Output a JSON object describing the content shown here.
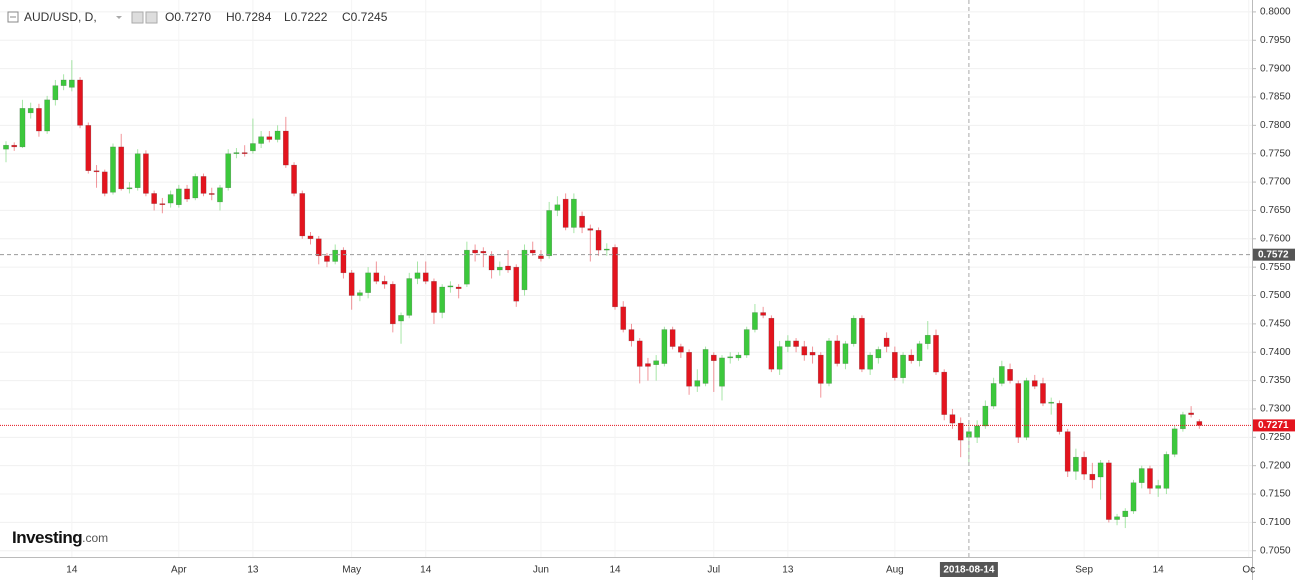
{
  "chart_data": {
    "type": "candlestick",
    "header": {
      "symbol": "AUD/USD, D,",
      "open": "O0.7270",
      "high": "H0.7284",
      "low": "L0.7222",
      "close": "C0.7245"
    },
    "logo": {
      "name": "Investing",
      "suffix": ".com"
    },
    "up_color": "#3cc83c",
    "down_color": "#e3141e",
    "ylim": [
      0.7039,
      0.8021
    ],
    "yticks": [
      {
        "value": 0.8,
        "label": "0.8000"
      },
      {
        "value": 0.795,
        "label": "0.7950"
      },
      {
        "value": 0.79,
        "label": "0.7900"
      },
      {
        "value": 0.785,
        "label": "0.7850"
      },
      {
        "value": 0.78,
        "label": "0.7800"
      },
      {
        "value": 0.775,
        "label": "0.7750"
      },
      {
        "value": 0.77,
        "label": "0.7700"
      },
      {
        "value": 0.765,
        "label": "0.7650"
      },
      {
        "value": 0.76,
        "label": "0.7600"
      },
      {
        "value": 0.755,
        "label": "0.7550"
      },
      {
        "value": 0.75,
        "label": "0.7500"
      },
      {
        "value": 0.745,
        "label": "0.7450"
      },
      {
        "value": 0.74,
        "label": "0.7400"
      },
      {
        "value": 0.735,
        "label": "0.7350"
      },
      {
        "value": 0.73,
        "label": "0.7300"
      },
      {
        "value": 0.725,
        "label": "0.7250"
      },
      {
        "value": 0.72,
        "label": "0.7200"
      },
      {
        "value": 0.715,
        "label": "0.7150"
      },
      {
        "value": 0.71,
        "label": "0.7100"
      },
      {
        "value": 0.705,
        "label": "0.7050"
      }
    ],
    "grid": true,
    "crosshair": {
      "date": "2018-08-14",
      "price": 0.7572
    },
    "last_price": 0.7271,
    "categories": [
      null,
      null,
      null,
      null,
      null,
      null,
      null,
      null,
      "14",
      null,
      null,
      null,
      null,
      null,
      null,
      null,
      null,
      null,
      null,
      null,
      null,
      "Apr",
      null,
      null,
      null,
      null,
      null,
      null,
      null,
      null,
      "13",
      null,
      null,
      null,
      null,
      null,
      null,
      null,
      null,
      null,
      null,
      null,
      "May",
      null,
      null,
      null,
      null,
      null,
      null,
      null,
      null,
      "14",
      null,
      null,
      null,
      null,
      null,
      null,
      null,
      null,
      null,
      null,
      null,
      null,
      null,
      "Jun",
      null,
      null,
      null,
      null,
      null,
      null,
      null,
      null,
      "14",
      null,
      null,
      null,
      null,
      null,
      null,
      null,
      null,
      null,
      null,
      null,
      "Jul",
      null,
      null,
      null,
      null,
      null,
      null,
      null,
      null,
      "13",
      null,
      null,
      null,
      null,
      null,
      null,
      null,
      null,
      null,
      null,
      null,
      null,
      "Aug",
      null,
      null,
      null,
      null,
      null,
      null,
      null,
      null,
      "2018-08-14",
      null,
      null,
      null,
      null,
      null,
      null,
      null,
      null,
      null,
      null,
      null,
      null,
      null,
      "Sep",
      null,
      null,
      null,
      null,
      null,
      null,
      null,
      null,
      "14",
      null,
      null,
      null,
      null,
      null,
      null,
      null,
      null,
      null,
      null,
      "Oc"
    ],
    "ohlc": [
      [
        0.7758,
        0.7772,
        0.7735,
        0.7765
      ],
      [
        0.7765,
        0.777,
        0.7755,
        0.7762
      ],
      [
        0.7762,
        0.7845,
        0.776,
        0.783
      ],
      [
        0.7822,
        0.784,
        0.7812,
        0.783
      ],
      [
        0.783,
        0.7838,
        0.778,
        0.779
      ],
      [
        0.779,
        0.7852,
        0.7785,
        0.7845
      ],
      [
        0.7845,
        0.788,
        0.7835,
        0.787
      ],
      [
        0.787,
        0.789,
        0.7862,
        0.788
      ],
      [
        0.7867,
        0.7915,
        0.786,
        0.788
      ],
      [
        0.788,
        0.7885,
        0.7795,
        0.78
      ],
      [
        0.78,
        0.7805,
        0.7715,
        0.772
      ],
      [
        0.772,
        0.773,
        0.769,
        0.7718
      ],
      [
        0.7718,
        0.7722,
        0.7675,
        0.768
      ],
      [
        0.7682,
        0.7768,
        0.7678,
        0.7762
      ],
      [
        0.7762,
        0.7785,
        0.7685,
        0.7688
      ],
      [
        0.7688,
        0.77,
        0.768,
        0.769
      ],
      [
        0.769,
        0.7758,
        0.7685,
        0.775
      ],
      [
        0.775,
        0.7756,
        0.7675,
        0.768
      ],
      [
        0.768,
        0.7685,
        0.765,
        0.7662
      ],
      [
        0.7662,
        0.7672,
        0.7645,
        0.766
      ],
      [
        0.7663,
        0.7685,
        0.7655,
        0.7678
      ],
      [
        0.766,
        0.7695,
        0.7655,
        0.7688
      ],
      [
        0.7688,
        0.7695,
        0.7665,
        0.767
      ],
      [
        0.7672,
        0.7715,
        0.7668,
        0.771
      ],
      [
        0.771,
        0.7715,
        0.7675,
        0.768
      ],
      [
        0.768,
        0.769,
        0.7668,
        0.7678
      ],
      [
        0.7665,
        0.7695,
        0.765,
        0.769
      ],
      [
        0.769,
        0.7758,
        0.7685,
        0.775
      ],
      [
        0.775,
        0.776,
        0.7742,
        0.7752
      ],
      [
        0.7752,
        0.7765,
        0.7745,
        0.775
      ],
      [
        0.7755,
        0.7812,
        0.775,
        0.7768
      ],
      [
        0.7768,
        0.779,
        0.776,
        0.778
      ],
      [
        0.778,
        0.779,
        0.777,
        0.7775
      ],
      [
        0.7775,
        0.78,
        0.777,
        0.779
      ],
      [
        0.779,
        0.7815,
        0.7725,
        0.773
      ],
      [
        0.773,
        0.7735,
        0.7675,
        0.768
      ],
      [
        0.768,
        0.7685,
        0.76,
        0.7605
      ],
      [
        0.7605,
        0.7612,
        0.759,
        0.76
      ],
      [
        0.76,
        0.7605,
        0.7555,
        0.757
      ],
      [
        0.757,
        0.7575,
        0.755,
        0.756
      ],
      [
        0.756,
        0.759,
        0.7555,
        0.758
      ],
      [
        0.758,
        0.7585,
        0.753,
        0.754
      ],
      [
        0.754,
        0.7545,
        0.7475,
        0.75
      ],
      [
        0.75,
        0.751,
        0.749,
        0.7505
      ],
      [
        0.7505,
        0.755,
        0.7495,
        0.754
      ],
      [
        0.754,
        0.756,
        0.752,
        0.7525
      ],
      [
        0.7525,
        0.7535,
        0.7512,
        0.752
      ],
      [
        0.752,
        0.7525,
        0.7435,
        0.745
      ],
      [
        0.7455,
        0.747,
        0.7415,
        0.7465
      ],
      [
        0.7465,
        0.754,
        0.746,
        0.753
      ],
      [
        0.753,
        0.756,
        0.752,
        0.754
      ],
      [
        0.754,
        0.756,
        0.752,
        0.7525
      ],
      [
        0.7525,
        0.753,
        0.745,
        0.747
      ],
      [
        0.747,
        0.752,
        0.746,
        0.7515
      ],
      [
        0.7515,
        0.7525,
        0.7505,
        0.7517
      ],
      [
        0.7515,
        0.752,
        0.7495,
        0.7512
      ],
      [
        0.752,
        0.7595,
        0.7515,
        0.758
      ],
      [
        0.758,
        0.759,
        0.756,
        0.7575
      ],
      [
        0.7578,
        0.7585,
        0.755,
        0.7575
      ],
      [
        0.757,
        0.7578,
        0.753,
        0.7545
      ],
      [
        0.7545,
        0.756,
        0.7535,
        0.755
      ],
      [
        0.7552,
        0.758,
        0.754,
        0.7545
      ],
      [
        0.755,
        0.7555,
        0.748,
        0.749
      ],
      [
        0.751,
        0.759,
        0.75,
        0.758
      ],
      [
        0.758,
        0.7595,
        0.757,
        0.7575
      ],
      [
        0.757,
        0.758,
        0.756,
        0.7565
      ],
      [
        0.757,
        0.7665,
        0.7565,
        0.765
      ],
      [
        0.765,
        0.7675,
        0.764,
        0.766
      ],
      [
        0.767,
        0.768,
        0.7615,
        0.762
      ],
      [
        0.762,
        0.768,
        0.761,
        0.767
      ],
      [
        0.764,
        0.7648,
        0.761,
        0.762
      ],
      [
        0.7618,
        0.7625,
        0.756,
        0.7615
      ],
      [
        0.7615,
        0.762,
        0.757,
        0.758
      ],
      [
        0.758,
        0.7592,
        0.757,
        0.7582
      ],
      [
        0.7585,
        0.759,
        0.7475,
        0.748
      ],
      [
        0.748,
        0.749,
        0.7435,
        0.744
      ],
      [
        0.744,
        0.745,
        0.741,
        0.742
      ],
      [
        0.742,
        0.7425,
        0.7345,
        0.7375
      ],
      [
        0.738,
        0.739,
        0.735,
        0.7375
      ],
      [
        0.7378,
        0.7395,
        0.735,
        0.7385
      ],
      [
        0.738,
        0.7445,
        0.7375,
        0.744
      ],
      [
        0.744,
        0.7445,
        0.7405,
        0.741
      ],
      [
        0.741,
        0.7415,
        0.739,
        0.74
      ],
      [
        0.74,
        0.7405,
        0.7325,
        0.734
      ],
      [
        0.734,
        0.737,
        0.733,
        0.735
      ],
      [
        0.7345,
        0.741,
        0.734,
        0.7405
      ],
      [
        0.7395,
        0.74,
        0.733,
        0.7385
      ],
      [
        0.734,
        0.7395,
        0.7315,
        0.739
      ],
      [
        0.739,
        0.74,
        0.738,
        0.7392
      ],
      [
        0.739,
        0.74,
        0.7385,
        0.7395
      ],
      [
        0.7395,
        0.7445,
        0.739,
        0.744
      ],
      [
        0.744,
        0.7485,
        0.7435,
        0.747
      ],
      [
        0.747,
        0.748,
        0.746,
        0.7465
      ],
      [
        0.746,
        0.7465,
        0.7365,
        0.737
      ],
      [
        0.737,
        0.742,
        0.736,
        0.741
      ],
      [
        0.741,
        0.743,
        0.74,
        0.742
      ],
      [
        0.742,
        0.7425,
        0.74,
        0.741
      ],
      [
        0.741,
        0.742,
        0.7385,
        0.7395
      ],
      [
        0.74,
        0.741,
        0.738,
        0.7395
      ],
      [
        0.7395,
        0.74,
        0.732,
        0.7345
      ],
      [
        0.7345,
        0.7425,
        0.734,
        0.742
      ],
      [
        0.742,
        0.743,
        0.7375,
        0.738
      ],
      [
        0.738,
        0.742,
        0.737,
        0.7415
      ],
      [
        0.7415,
        0.7465,
        0.741,
        0.746
      ],
      [
        0.746,
        0.7465,
        0.7365,
        0.737
      ],
      [
        0.737,
        0.74,
        0.736,
        0.7395
      ],
      [
        0.739,
        0.741,
        0.738,
        0.7405
      ],
      [
        0.7425,
        0.7435,
        0.74,
        0.741
      ],
      [
        0.74,
        0.741,
        0.735,
        0.7355
      ],
      [
        0.7355,
        0.74,
        0.7345,
        0.7395
      ],
      [
        0.7395,
        0.7405,
        0.738,
        0.7385
      ],
      [
        0.7385,
        0.742,
        0.7375,
        0.7415
      ],
      [
        0.7415,
        0.7455,
        0.7405,
        0.743
      ],
      [
        0.743,
        0.744,
        0.736,
        0.7365
      ],
      [
        0.7365,
        0.737,
        0.728,
        0.729
      ],
      [
        0.729,
        0.73,
        0.7265,
        0.7275
      ],
      [
        0.7275,
        0.7285,
        0.7215,
        0.7245
      ],
      [
        0.725,
        0.7275,
        0.72,
        0.726
      ],
      [
        0.725,
        0.728,
        0.724,
        0.727
      ],
      [
        0.727,
        0.7315,
        0.7265,
        0.7305
      ],
      [
        0.7305,
        0.7355,
        0.73,
        0.7345
      ],
      [
        0.7345,
        0.7385,
        0.734,
        0.7375
      ],
      [
        0.737,
        0.738,
        0.7345,
        0.735
      ],
      [
        0.7345,
        0.735,
        0.724,
        0.725
      ],
      [
        0.725,
        0.7355,
        0.7245,
        0.735
      ],
      [
        0.735,
        0.736,
        0.7335,
        0.734
      ],
      [
        0.7345,
        0.7355,
        0.7305,
        0.731
      ],
      [
        0.731,
        0.732,
        0.729,
        0.7312
      ],
      [
        0.731,
        0.7315,
        0.7255,
        0.726
      ],
      [
        0.726,
        0.7265,
        0.718,
        0.719
      ],
      [
        0.719,
        0.723,
        0.7175,
        0.7215
      ],
      [
        0.7215,
        0.7225,
        0.7175,
        0.7185
      ],
      [
        0.7185,
        0.7205,
        0.716,
        0.7175
      ],
      [
        0.718,
        0.721,
        0.714,
        0.7205
      ],
      [
        0.7205,
        0.721,
        0.71,
        0.7105
      ],
      [
        0.7105,
        0.7115,
        0.7095,
        0.711
      ],
      [
        0.711,
        0.7125,
        0.709,
        0.712
      ],
      [
        0.712,
        0.7175,
        0.7115,
        0.717
      ],
      [
        0.717,
        0.72,
        0.716,
        0.7195
      ],
      [
        0.7195,
        0.72,
        0.715,
        0.716
      ],
      [
        0.716,
        0.7175,
        0.7145,
        0.7165
      ],
      [
        0.716,
        0.7225,
        0.715,
        0.722
      ],
      [
        0.722,
        0.727,
        0.7215,
        0.7265
      ],
      [
        0.7265,
        0.7295,
        0.726,
        0.729
      ],
      [
        0.7293,
        0.7305,
        0.7285,
        0.729
      ],
      [
        0.7278,
        0.7282,
        0.7265,
        0.7271
      ],
      null,
      null,
      null,
      null,
      null,
      null
    ]
  }
}
